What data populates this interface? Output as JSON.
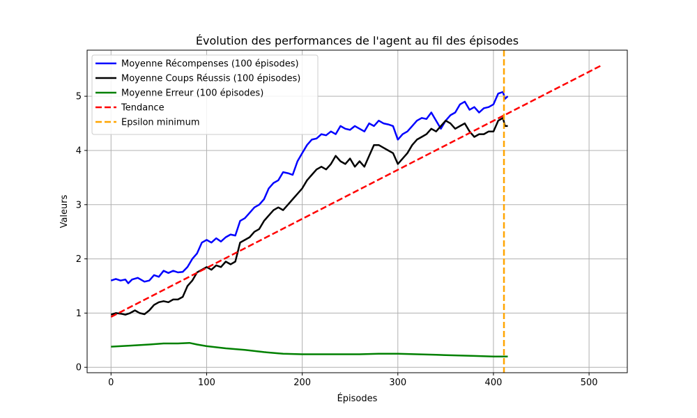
{
  "chart_data": {
    "type": "line",
    "title": "Évolution des performances de l'agent au fil des épisodes",
    "xlabel": "Épisodes",
    "ylabel": "Valeurs",
    "xlim": [
      -25,
      540
    ],
    "ylim": [
      -0.1,
      5.85
    ],
    "xticks": [
      0,
      100,
      200,
      300,
      400,
      500
    ],
    "yticks": [
      0,
      1,
      2,
      3,
      4,
      5
    ],
    "grid": true,
    "legend_position": "upper-left",
    "series": [
      {
        "name": "Moyenne Récompenses (100 épisodes)",
        "color": "#0000ff",
        "style": "solid",
        "points": [
          [
            0,
            1.6
          ],
          [
            5,
            1.63
          ],
          [
            10,
            1.6
          ],
          [
            15,
            1.62
          ],
          [
            18,
            1.55
          ],
          [
            22,
            1.62
          ],
          [
            28,
            1.65
          ],
          [
            35,
            1.58
          ],
          [
            40,
            1.6
          ],
          [
            45,
            1.7
          ],
          [
            50,
            1.67
          ],
          [
            55,
            1.78
          ],
          [
            60,
            1.74
          ],
          [
            65,
            1.78
          ],
          [
            70,
            1.75
          ],
          [
            75,
            1.76
          ],
          [
            80,
            1.85
          ],
          [
            85,
            2.0
          ],
          [
            90,
            2.1
          ],
          [
            95,
            2.3
          ],
          [
            100,
            2.35
          ],
          [
            105,
            2.3
          ],
          [
            110,
            2.38
          ],
          [
            115,
            2.32
          ],
          [
            120,
            2.4
          ],
          [
            125,
            2.45
          ],
          [
            130,
            2.43
          ],
          [
            135,
            2.7
          ],
          [
            140,
            2.75
          ],
          [
            145,
            2.85
          ],
          [
            150,
            2.95
          ],
          [
            155,
            3.0
          ],
          [
            160,
            3.1
          ],
          [
            165,
            3.3
          ],
          [
            170,
            3.4
          ],
          [
            175,
            3.45
          ],
          [
            180,
            3.6
          ],
          [
            185,
            3.58
          ],
          [
            190,
            3.55
          ],
          [
            195,
            3.8
          ],
          [
            200,
            3.95
          ],
          [
            205,
            4.1
          ],
          [
            210,
            4.2
          ],
          [
            215,
            4.22
          ],
          [
            220,
            4.3
          ],
          [
            225,
            4.28
          ],
          [
            230,
            4.35
          ],
          [
            235,
            4.3
          ],
          [
            240,
            4.45
          ],
          [
            245,
            4.4
          ],
          [
            250,
            4.38
          ],
          [
            255,
            4.45
          ],
          [
            260,
            4.4
          ],
          [
            265,
            4.35
          ],
          [
            270,
            4.5
          ],
          [
            275,
            4.45
          ],
          [
            280,
            4.55
          ],
          [
            285,
            4.5
          ],
          [
            290,
            4.48
          ],
          [
            295,
            4.45
          ],
          [
            300,
            4.2
          ],
          [
            305,
            4.3
          ],
          [
            310,
            4.35
          ],
          [
            315,
            4.45
          ],
          [
            320,
            4.55
          ],
          [
            325,
            4.6
          ],
          [
            330,
            4.58
          ],
          [
            335,
            4.7
          ],
          [
            340,
            4.55
          ],
          [
            345,
            4.4
          ],
          [
            350,
            4.55
          ],
          [
            355,
            4.65
          ],
          [
            360,
            4.7
          ],
          [
            365,
            4.85
          ],
          [
            370,
            4.9
          ],
          [
            375,
            4.75
          ],
          [
            380,
            4.8
          ],
          [
            385,
            4.7
          ],
          [
            390,
            4.78
          ],
          [
            395,
            4.8
          ],
          [
            400,
            4.85
          ],
          [
            405,
            5.05
          ],
          [
            410,
            5.08
          ],
          [
            412,
            4.95
          ],
          [
            415,
            5.0
          ]
        ]
      },
      {
        "name": "Moyenne Coups Réussis (100 épisodes)",
        "color": "#000000",
        "style": "solid",
        "points": [
          [
            0,
            0.97
          ],
          [
            5,
            1.0
          ],
          [
            10,
            0.99
          ],
          [
            15,
            0.97
          ],
          [
            20,
            1.0
          ],
          [
            25,
            1.05
          ],
          [
            30,
            1.0
          ],
          [
            35,
            0.98
          ],
          [
            40,
            1.05
          ],
          [
            45,
            1.15
          ],
          [
            50,
            1.2
          ],
          [
            55,
            1.22
          ],
          [
            60,
            1.2
          ],
          [
            65,
            1.25
          ],
          [
            70,
            1.25
          ],
          [
            75,
            1.3
          ],
          [
            80,
            1.5
          ],
          [
            85,
            1.6
          ],
          [
            90,
            1.75
          ],
          [
            95,
            1.8
          ],
          [
            100,
            1.85
          ],
          [
            105,
            1.8
          ],
          [
            110,
            1.88
          ],
          [
            115,
            1.85
          ],
          [
            120,
            1.95
          ],
          [
            125,
            1.9
          ],
          [
            130,
            1.95
          ],
          [
            135,
            2.3
          ],
          [
            140,
            2.35
          ],
          [
            145,
            2.4
          ],
          [
            150,
            2.5
          ],
          [
            155,
            2.55
          ],
          [
            160,
            2.7
          ],
          [
            165,
            2.8
          ],
          [
            170,
            2.9
          ],
          [
            175,
            2.95
          ],
          [
            180,
            2.9
          ],
          [
            185,
            3.0
          ],
          [
            190,
            3.1
          ],
          [
            195,
            3.2
          ],
          [
            200,
            3.3
          ],
          [
            205,
            3.45
          ],
          [
            210,
            3.55
          ],
          [
            215,
            3.65
          ],
          [
            220,
            3.7
          ],
          [
            225,
            3.65
          ],
          [
            230,
            3.75
          ],
          [
            235,
            3.9
          ],
          [
            240,
            3.8
          ],
          [
            245,
            3.75
          ],
          [
            250,
            3.85
          ],
          [
            255,
            3.7
          ],
          [
            260,
            3.8
          ],
          [
            265,
            3.7
          ],
          [
            270,
            3.9
          ],
          [
            275,
            4.1
          ],
          [
            280,
            4.1
          ],
          [
            285,
            4.05
          ],
          [
            290,
            4.0
          ],
          [
            295,
            3.95
          ],
          [
            300,
            3.75
          ],
          [
            305,
            3.85
          ],
          [
            310,
            3.95
          ],
          [
            315,
            4.1
          ],
          [
            320,
            4.2
          ],
          [
            325,
            4.25
          ],
          [
            330,
            4.3
          ],
          [
            335,
            4.4
          ],
          [
            340,
            4.35
          ],
          [
            345,
            4.45
          ],
          [
            350,
            4.55
          ],
          [
            355,
            4.5
          ],
          [
            360,
            4.4
          ],
          [
            365,
            4.45
          ],
          [
            370,
            4.5
          ],
          [
            375,
            4.35
          ],
          [
            380,
            4.25
          ],
          [
            385,
            4.3
          ],
          [
            390,
            4.3
          ],
          [
            395,
            4.35
          ],
          [
            400,
            4.35
          ],
          [
            405,
            4.55
          ],
          [
            410,
            4.6
          ],
          [
            412,
            4.45
          ],
          [
            415,
            4.45
          ]
        ]
      },
      {
        "name": "Moyenne Erreur (100 épisodes)",
        "color": "#008000",
        "style": "solid",
        "points": [
          [
            0,
            0.38
          ],
          [
            20,
            0.4
          ],
          [
            40,
            0.42
          ],
          [
            55,
            0.44
          ],
          [
            70,
            0.44
          ],
          [
            82,
            0.45
          ],
          [
            90,
            0.42
          ],
          [
            100,
            0.39
          ],
          [
            120,
            0.35
          ],
          [
            140,
            0.32
          ],
          [
            160,
            0.28
          ],
          [
            180,
            0.25
          ],
          [
            200,
            0.24
          ],
          [
            220,
            0.24
          ],
          [
            240,
            0.24
          ],
          [
            260,
            0.24
          ],
          [
            280,
            0.25
          ],
          [
            300,
            0.25
          ],
          [
            320,
            0.24
          ],
          [
            340,
            0.23
          ],
          [
            360,
            0.22
          ],
          [
            380,
            0.21
          ],
          [
            400,
            0.2
          ],
          [
            415,
            0.2
          ]
        ]
      },
      {
        "name": "Tendance",
        "color": "#ff0000",
        "style": "dashed",
        "points": [
          [
            0,
            0.93
          ],
          [
            513,
            5.57
          ]
        ]
      }
    ],
    "vline": {
      "name": "Epsilon minimum",
      "x": 411,
      "color": "#ffa500",
      "style": "dashed"
    }
  }
}
